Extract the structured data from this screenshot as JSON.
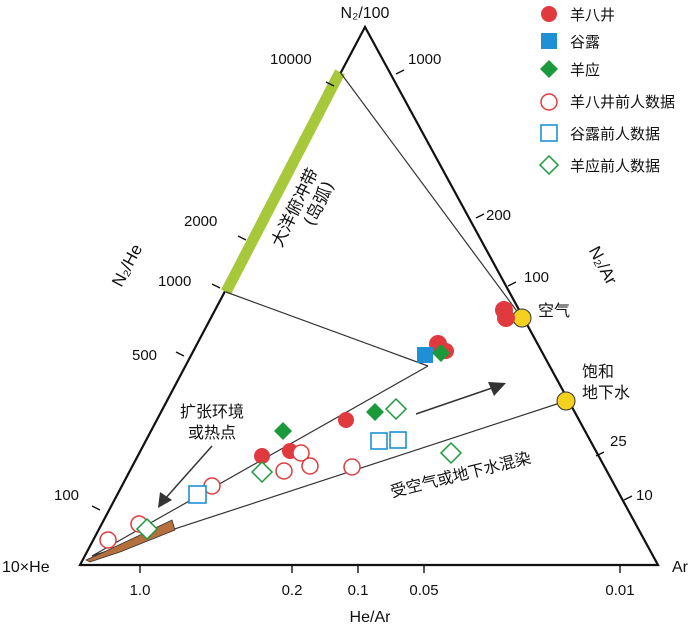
{
  "legend": [
    {
      "label": "羊八井",
      "marker": "filled-circle",
      "color": "#e03a3e"
    },
    {
      "label": "谷露",
      "marker": "filled-square",
      "color": "#1f8fd6"
    },
    {
      "label": "羊应",
      "marker": "filled-diamond",
      "color": "#1a9a3a"
    },
    {
      "label": "羊八井前人数据",
      "marker": "open-circle",
      "color": "#e03a3e"
    },
    {
      "label": "谷露前人数据",
      "marker": "open-square",
      "color": "#1f8fd6"
    },
    {
      "label": "羊应前人数据",
      "marker": "open-diamond",
      "color": "#1a9a3a"
    }
  ],
  "apex_labels": {
    "top": "N₂/100",
    "left": "10×He",
    "right": "Ar"
  },
  "axis_titles": {
    "left": "N₂/He",
    "right": "N₂/Ar",
    "bottom": "He/Ar"
  },
  "left_ticks": [
    "10000",
    "2000",
    "1000",
    "500",
    "100"
  ],
  "right_ticks": [
    "1000",
    "200",
    "100",
    "25",
    "10"
  ],
  "bottom_ticks": [
    "1.0",
    "0.2",
    "0.1",
    "0.05",
    "0.01"
  ],
  "annotations": {
    "arc": "大洋俯冲带",
    "arc_sub": "(岛弧)",
    "air": "空气",
    "saturated_line1": "饱和",
    "saturated_line2": "地下水",
    "rift_line1": "扩张环境",
    "rift_line2": "或热点",
    "mixing": "受空气或地下水混染"
  },
  "colors": {
    "arc_band": "#a6c83a",
    "mantle_wedge": "#b5703e",
    "end_member": "#f5d01e"
  }
}
